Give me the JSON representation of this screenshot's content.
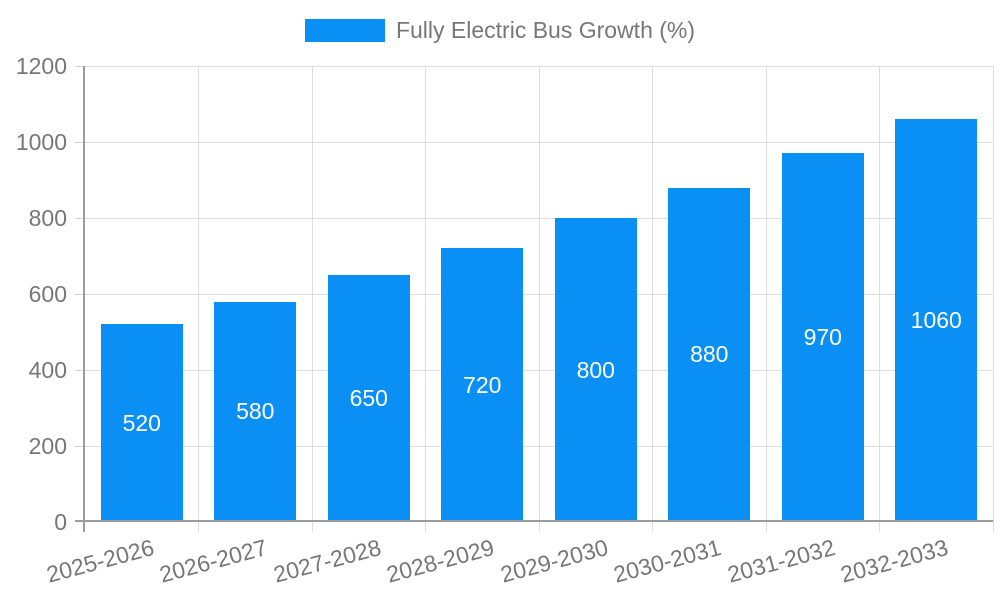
{
  "chart_data": {
    "type": "bar",
    "title": "",
    "legend_entries": [
      "Fully Electric Bus Growth (%)"
    ],
    "legend_position": "top",
    "categories": [
      "2025-2026",
      "2026-2027",
      "2027-2028",
      "2028-2029",
      "2029-2030",
      "2030-2031",
      "2031-2032",
      "2032-2033"
    ],
    "values": [
      520,
      580,
      650,
      720,
      800,
      880,
      970,
      1060
    ],
    "bar_value_labels": [
      "520",
      "580",
      "650",
      "720",
      "800",
      "880",
      "970",
      "1060"
    ],
    "xlabel": "",
    "ylabel": "",
    "ylim": [
      0,
      1200
    ],
    "yticks": [
      0,
      200,
      400,
      600,
      800,
      1000,
      1200
    ],
    "grid": true,
    "colors": {
      "bar": "#0a8ff5",
      "bar_value_text": "#ffffff",
      "axis_text": "#777777",
      "axis_line": "#9c9c9c",
      "gridline": "#dedede"
    }
  }
}
